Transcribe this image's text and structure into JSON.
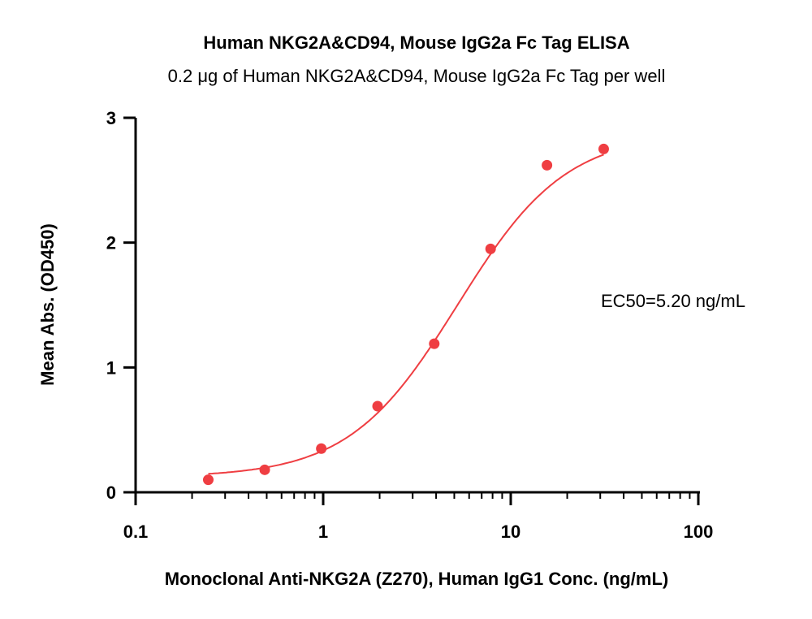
{
  "chart_data": {
    "type": "scatter",
    "title": "Human NKG2A&CD94, Mouse IgG2a Fc Tag ELISA",
    "subtitle": "0.2 μg of Human NKG2A&CD94, Mouse IgG2a Fc Tag per well",
    "xlabel": "Monoclonal Anti-NKG2A (Z270), Human IgG1 Conc. (ng/mL)",
    "ylabel": "Mean Abs. (OD450)",
    "x_scale": "log",
    "xlim": [
      0.1,
      100
    ],
    "ylim": [
      0,
      3
    ],
    "x_ticks": [
      "0.1",
      "1",
      "10",
      "100"
    ],
    "y_ticks": [
      "0",
      "1",
      "2",
      "3"
    ],
    "grid": false,
    "series": [
      {
        "color": "#ef3e42",
        "x": [
          0.244,
          0.488,
          0.977,
          1.95,
          3.91,
          7.81,
          15.6,
          31.3
        ],
        "y": [
          0.1,
          0.18,
          0.35,
          0.69,
          1.19,
          1.95,
          2.62,
          2.75
        ],
        "fit": {
          "model": "4PL",
          "bottom": 0.12,
          "top": 2.88,
          "ec50": 5.2,
          "hill": 1.5
        }
      }
    ],
    "annotation": "EC50=5.20 ng/mL"
  }
}
